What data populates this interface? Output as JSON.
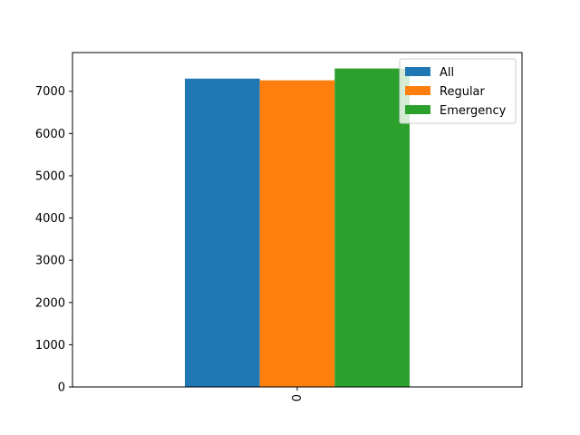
{
  "chart_data": {
    "type": "bar",
    "categories": [
      "0"
    ],
    "series": [
      {
        "name": "All",
        "values": [
          7300
        ],
        "color": "#1f77b4"
      },
      {
        "name": "Regular",
        "values": [
          7260
        ],
        "color": "#ff7f0e"
      },
      {
        "name": "Emergency",
        "values": [
          7540
        ],
        "color": "#2ca02c"
      }
    ],
    "title": "",
    "xlabel": "",
    "ylabel": "",
    "ylim": [
      0,
      7917
    ],
    "yticks": [
      "0",
      "1000",
      "2000",
      "3000",
      "4000",
      "5000",
      "6000",
      "7000"
    ],
    "ytick_values": [
      0,
      1000,
      2000,
      3000,
      4000,
      5000,
      6000,
      7000
    ],
    "grid": false,
    "legend_position": "top-right"
  }
}
